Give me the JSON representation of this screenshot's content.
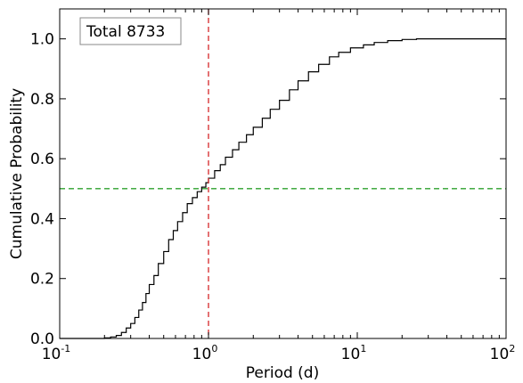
{
  "chart_data": {
    "type": "line",
    "title": "",
    "xlabel": "Period (d)",
    "ylabel": "Cumulative Probability",
    "xscale": "log",
    "xlim": [
      0.1,
      100
    ],
    "ylim": [
      0.0,
      1.1
    ],
    "grid": false,
    "annotation": "Total 8733",
    "x_ticks": [
      {
        "base": "10",
        "exp": "-1",
        "value": 0.1
      },
      {
        "base": "10",
        "exp": "0",
        "value": 1
      },
      {
        "base": "10",
        "exp": "1",
        "value": 10
      },
      {
        "base": "10",
        "exp": "2",
        "value": 100
      }
    ],
    "y_ticks": [
      "0.0",
      "0.2",
      "0.4",
      "0.6",
      "0.8",
      "1.0"
    ],
    "series": [
      {
        "style": "step",
        "color": "#000000",
        "x": [
          0.1,
          0.2,
          0.22,
          0.24,
          0.26,
          0.28,
          0.3,
          0.32,
          0.34,
          0.36,
          0.38,
          0.4,
          0.43,
          0.46,
          0.5,
          0.54,
          0.58,
          0.62,
          0.67,
          0.72,
          0.78,
          0.84,
          0.9,
          0.96,
          1.0,
          1.1,
          1.2,
          1.3,
          1.45,
          1.6,
          1.8,
          2.0,
          2.3,
          2.6,
          3.0,
          3.5,
          4.0,
          4.7,
          5.5,
          6.5,
          7.5,
          9.0,
          11,
          13,
          16,
          20,
          25,
          35,
          50,
          100
        ],
        "y": [
          0.0,
          0.002,
          0.005,
          0.01,
          0.02,
          0.035,
          0.05,
          0.07,
          0.095,
          0.12,
          0.15,
          0.18,
          0.21,
          0.25,
          0.29,
          0.33,
          0.36,
          0.39,
          0.42,
          0.45,
          0.47,
          0.49,
          0.505,
          0.52,
          0.535,
          0.56,
          0.58,
          0.605,
          0.63,
          0.655,
          0.68,
          0.705,
          0.735,
          0.765,
          0.795,
          0.83,
          0.86,
          0.89,
          0.915,
          0.94,
          0.955,
          0.97,
          0.98,
          0.988,
          0.994,
          0.998,
          1.0,
          1.0,
          1.0,
          1.0
        ]
      }
    ],
    "reference_lines": [
      {
        "orientation": "vertical",
        "value": 1.0,
        "color": "#d62728",
        "style": "dashed"
      },
      {
        "orientation": "horizontal",
        "value": 0.5,
        "color": "#2ca02c",
        "style": "dashed"
      }
    ]
  }
}
